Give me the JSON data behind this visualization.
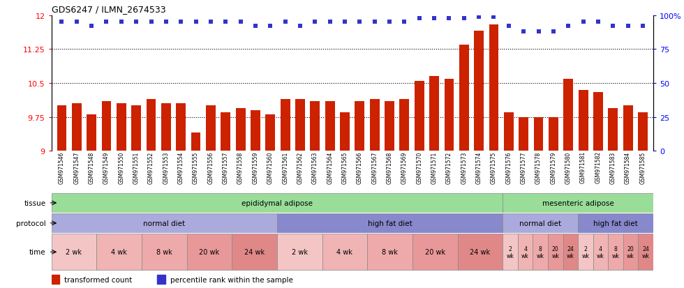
{
  "title": "GDS6247 / ILMN_2674533",
  "samples": [
    "GSM971546",
    "GSM971547",
    "GSM971548",
    "GSM971549",
    "GSM971550",
    "GSM971551",
    "GSM971552",
    "GSM971553",
    "GSM971554",
    "GSM971555",
    "GSM971556",
    "GSM971557",
    "GSM971558",
    "GSM971559",
    "GSM971560",
    "GSM971561",
    "GSM971562",
    "GSM971563",
    "GSM971564",
    "GSM971565",
    "GSM971566",
    "GSM971567",
    "GSM971568",
    "GSM971569",
    "GSM971570",
    "GSM971571",
    "GSM971572",
    "GSM971573",
    "GSM971574",
    "GSM971575",
    "GSM971576",
    "GSM971577",
    "GSM971578",
    "GSM971579",
    "GSM971580",
    "GSM971581",
    "GSM971582",
    "GSM971583",
    "GSM971584",
    "GSM971585"
  ],
  "bar_values": [
    10.0,
    10.05,
    9.8,
    10.1,
    10.05,
    10.0,
    10.15,
    10.05,
    10.05,
    9.4,
    10.0,
    9.85,
    9.95,
    9.9,
    9.8,
    10.15,
    10.15,
    10.1,
    10.1,
    9.85,
    10.1,
    10.15,
    10.1,
    10.15,
    10.55,
    10.65,
    10.6,
    11.35,
    11.65,
    11.8,
    9.85,
    9.75,
    9.75,
    9.75,
    10.6,
    10.35,
    10.3,
    9.95,
    10.0,
    9.85
  ],
  "percentile_values": [
    95,
    95,
    92,
    95,
    95,
    95,
    95,
    95,
    95,
    95,
    95,
    95,
    95,
    92,
    92,
    95,
    92,
    95,
    95,
    95,
    95,
    95,
    95,
    95,
    98,
    98,
    98,
    98,
    99,
    99,
    92,
    88,
    88,
    88,
    92,
    95,
    95,
    92,
    92,
    92
  ],
  "ylim_left": [
    9.0,
    12.0
  ],
  "ylim_right": [
    0,
    100
  ],
  "yticks_left": [
    9.0,
    9.75,
    10.5,
    11.25,
    12.0
  ],
  "ytick_labels_left": [
    "9",
    "9.75",
    "10.5",
    "11.25",
    "12"
  ],
  "yticks_right": [
    0,
    25,
    50,
    75,
    100
  ],
  "ytick_labels_right": [
    "0",
    "25",
    "50",
    "75",
    "100%"
  ],
  "hlines": [
    9.75,
    10.5,
    11.25
  ],
  "bar_color": "#cc2200",
  "dot_color": "#3333cc",
  "bg_color": "#ffffff",
  "tissue_data": [
    {
      "start": 0,
      "end": 30,
      "label": "epididymal adipose",
      "color": "#99dd99"
    },
    {
      "start": 30,
      "end": 40,
      "label": "mesenteric adipose",
      "color": "#99dd99"
    }
  ],
  "protocol_data": [
    {
      "start": 0,
      "end": 15,
      "label": "normal diet",
      "color": "#aaaadd"
    },
    {
      "start": 15,
      "end": 30,
      "label": "high fat diet",
      "color": "#8888cc"
    },
    {
      "start": 30,
      "end": 35,
      "label": "normal diet",
      "color": "#aaaadd"
    },
    {
      "start": 35,
      "end": 40,
      "label": "high fat diet",
      "color": "#8888cc"
    }
  ],
  "time_data": [
    {
      "start": 0,
      "end": 3,
      "label": "2 wk",
      "color": "#f4c5c5"
    },
    {
      "start": 3,
      "end": 6,
      "label": "4 wk",
      "color": "#f0b4b4"
    },
    {
      "start": 6,
      "end": 9,
      "label": "8 wk",
      "color": "#eeaaaa"
    },
    {
      "start": 9,
      "end": 12,
      "label": "20 wk",
      "color": "#e89898"
    },
    {
      "start": 12,
      "end": 15,
      "label": "24 wk",
      "color": "#e08888"
    },
    {
      "start": 15,
      "end": 18,
      "label": "2 wk",
      "color": "#f4c5c5"
    },
    {
      "start": 18,
      "end": 21,
      "label": "4 wk",
      "color": "#f0b4b4"
    },
    {
      "start": 21,
      "end": 24,
      "label": "8 wk",
      "color": "#eeaaaa"
    },
    {
      "start": 24,
      "end": 27,
      "label": "20 wk",
      "color": "#e89898"
    },
    {
      "start": 27,
      "end": 30,
      "label": "24 wk",
      "color": "#e08888"
    },
    {
      "start": 30,
      "end": 31,
      "label": "2\nwk",
      "color": "#f4c5c5"
    },
    {
      "start": 31,
      "end": 32,
      "label": "4\nwk",
      "color": "#f0b4b4"
    },
    {
      "start": 32,
      "end": 33,
      "label": "8\nwk",
      "color": "#eeaaaa"
    },
    {
      "start": 33,
      "end": 34,
      "label": "20\nwk",
      "color": "#e89898"
    },
    {
      "start": 34,
      "end": 35,
      "label": "24\nwk",
      "color": "#e08888"
    },
    {
      "start": 35,
      "end": 36,
      "label": "2\nwk",
      "color": "#f4c5c5"
    },
    {
      "start": 36,
      "end": 37,
      "label": "4\nwk",
      "color": "#f0b4b4"
    },
    {
      "start": 37,
      "end": 38,
      "label": "8\nwk",
      "color": "#eeaaaa"
    },
    {
      "start": 38,
      "end": 39,
      "label": "20\nwk",
      "color": "#e89898"
    },
    {
      "start": 39,
      "end": 40,
      "label": "24\nwk",
      "color": "#e08888"
    }
  ],
  "row_labels": [
    {
      "label": "tissue",
      "row": "tissue"
    },
    {
      "label": "protocol",
      "row": "protocol"
    },
    {
      "label": "time",
      "row": "time"
    }
  ],
  "legend": [
    {
      "color": "#cc2200",
      "label": "transformed count"
    },
    {
      "color": "#3333cc",
      "label": "percentile rank within the sample"
    }
  ]
}
